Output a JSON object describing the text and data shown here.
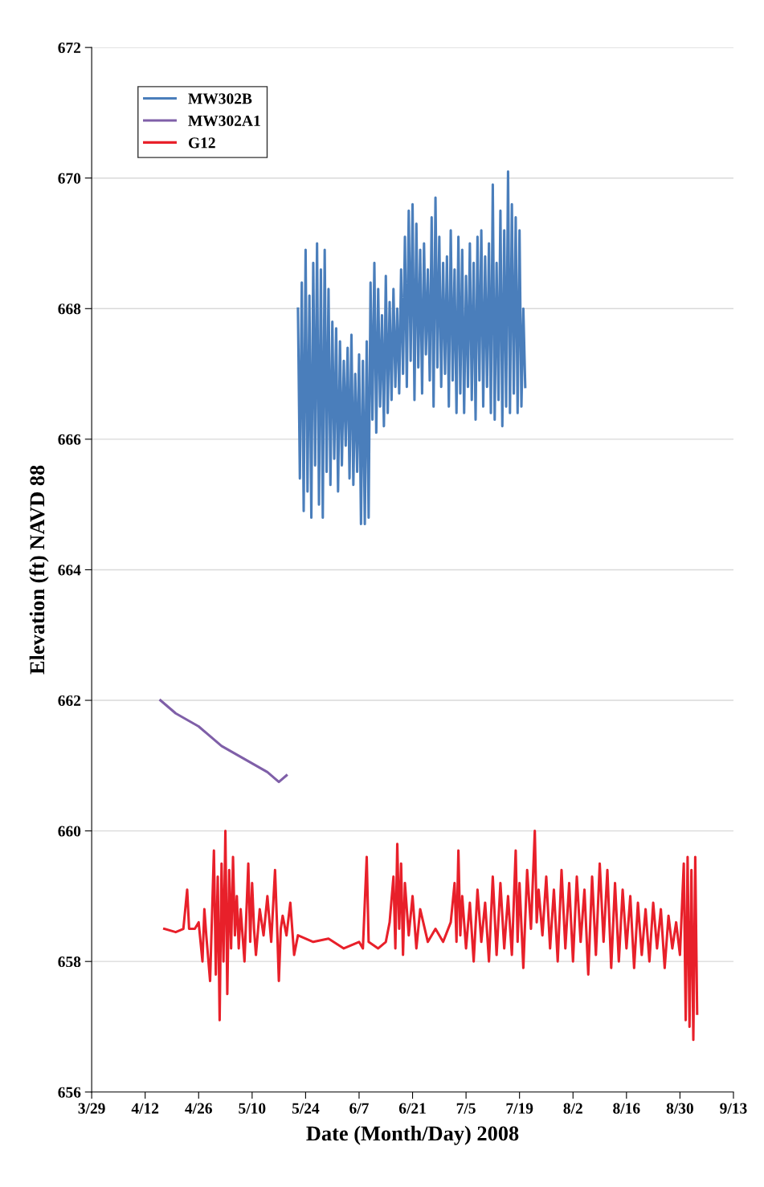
{
  "chart_data": {
    "type": "line",
    "xlabel": "Date (Month/Day) 2008",
    "ylabel": "Elevation (ft) NAVD 88",
    "xlim": [
      "2008-03-29",
      "2008-09-13"
    ],
    "xticks": [
      {
        "value": "2008-03-29",
        "label": "3/29"
      },
      {
        "value": "2008-04-12",
        "label": "4/12"
      },
      {
        "value": "2008-04-26",
        "label": "4/26"
      },
      {
        "value": "2008-05-10",
        "label": "5/10"
      },
      {
        "value": "2008-05-24",
        "label": "5/24"
      },
      {
        "value": "2008-06-07",
        "label": "6/7"
      },
      {
        "value": "2008-06-21",
        "label": "6/21"
      },
      {
        "value": "2008-07-05",
        "label": "7/5"
      },
      {
        "value": "2008-07-19",
        "label": "7/19"
      },
      {
        "value": "2008-08-02",
        "label": "8/2"
      },
      {
        "value": "2008-08-16",
        "label": "8/16"
      },
      {
        "value": "2008-08-30",
        "label": "8/30"
      },
      {
        "value": "2008-09-13",
        "label": "9/13"
      }
    ],
    "ylim": [
      656,
      672
    ],
    "yticks": [
      656,
      658,
      660,
      662,
      664,
      666,
      668,
      670,
      672
    ],
    "grid": "y",
    "legend": "top left",
    "marker": "none",
    "line_style": "solid",
    "series": [
      {
        "name": "MW302B",
        "color": "#4a7ebb",
        "x": [
          "2008-05-22T00:00",
          "2008-05-22T12:00",
          "2008-05-23T00:00",
          "2008-05-23T12:00",
          "2008-05-24T00:00",
          "2008-05-24T12:00",
          "2008-05-25T00:00",
          "2008-05-25T12:00",
          "2008-05-26T00:00",
          "2008-05-26T12:00",
          "2008-05-27T00:00",
          "2008-05-27T12:00",
          "2008-05-28T00:00",
          "2008-05-28T12:00",
          "2008-05-29T00:00",
          "2008-05-29T12:00",
          "2008-05-30T00:00",
          "2008-05-30T12:00",
          "2008-05-31T00:00",
          "2008-05-31T12:00",
          "2008-06-01T00:00",
          "2008-06-01T12:00",
          "2008-06-02T00:00",
          "2008-06-02T12:00",
          "2008-06-03T00:00",
          "2008-06-03T12:00",
          "2008-06-04T00:00",
          "2008-06-04T12:00",
          "2008-06-05T00:00",
          "2008-06-05T12:00",
          "2008-06-06T00:00",
          "2008-06-06T12:00",
          "2008-06-07T00:00",
          "2008-06-07T12:00",
          "2008-06-08T00:00",
          "2008-06-08T12:00",
          "2008-06-09T00:00",
          "2008-06-09T12:00",
          "2008-06-10T00:00",
          "2008-06-10T12:00",
          "2008-06-11T00:00",
          "2008-06-11T12:00",
          "2008-06-12T00:00",
          "2008-06-12T12:00",
          "2008-06-13T00:00",
          "2008-06-13T12:00",
          "2008-06-14T00:00",
          "2008-06-14T12:00",
          "2008-06-15T00:00",
          "2008-06-15T12:00",
          "2008-06-16T00:00",
          "2008-06-16T12:00",
          "2008-06-17T00:00",
          "2008-06-17T12:00",
          "2008-06-18T00:00",
          "2008-06-18T12:00",
          "2008-06-19T00:00",
          "2008-06-19T12:00",
          "2008-06-20T00:00",
          "2008-06-20T12:00",
          "2008-06-21T00:00",
          "2008-06-21T12:00",
          "2008-06-22T00:00",
          "2008-06-22T12:00",
          "2008-06-23T00:00",
          "2008-06-23T12:00",
          "2008-06-24T00:00",
          "2008-06-24T12:00",
          "2008-06-25T00:00",
          "2008-06-25T12:00",
          "2008-06-26T00:00",
          "2008-06-26T12:00",
          "2008-06-27T00:00",
          "2008-06-27T12:00",
          "2008-06-28T00:00",
          "2008-06-28T12:00",
          "2008-06-29T00:00",
          "2008-06-29T12:00",
          "2008-06-30T00:00",
          "2008-06-30T12:00",
          "2008-07-01T00:00",
          "2008-07-01T12:00",
          "2008-07-02T00:00",
          "2008-07-02T12:00",
          "2008-07-03T00:00",
          "2008-07-03T12:00",
          "2008-07-04T00:00",
          "2008-07-04T12:00",
          "2008-07-05T00:00",
          "2008-07-05T12:00",
          "2008-07-06T00:00",
          "2008-07-06T12:00",
          "2008-07-07T00:00",
          "2008-07-07T12:00",
          "2008-07-08T00:00",
          "2008-07-08T12:00",
          "2008-07-09T00:00",
          "2008-07-09T12:00",
          "2008-07-10T00:00",
          "2008-07-10T12:00",
          "2008-07-11T00:00",
          "2008-07-11T12:00",
          "2008-07-12T00:00",
          "2008-07-12T12:00",
          "2008-07-13T00:00",
          "2008-07-13T12:00",
          "2008-07-14T00:00",
          "2008-07-14T12:00",
          "2008-07-15T00:00",
          "2008-07-15T12:00",
          "2008-07-16T00:00",
          "2008-07-16T12:00",
          "2008-07-17T00:00",
          "2008-07-17T12:00",
          "2008-07-18T00:00",
          "2008-07-18T12:00",
          "2008-07-19T00:00",
          "2008-07-19T12:00",
          "2008-07-20T00:00",
          "2008-07-20T12:00"
        ],
        "values": [
          668.0,
          665.4,
          668.4,
          664.9,
          668.9,
          665.2,
          668.2,
          664.8,
          668.7,
          665.6,
          669.0,
          665.0,
          668.6,
          664.8,
          668.9,
          665.5,
          668.3,
          665.3,
          667.8,
          665.7,
          667.7,
          665.2,
          667.5,
          665.6,
          667.2,
          665.9,
          667.4,
          665.4,
          667.6,
          665.3,
          667.0,
          665.5,
          667.3,
          664.7,
          667.2,
          664.7,
          667.5,
          664.8,
          668.4,
          666.3,
          668.7,
          666.1,
          668.3,
          666.5,
          667.9,
          666.2,
          668.5,
          666.4,
          668.1,
          666.6,
          668.3,
          666.8,
          668.0,
          666.7,
          668.6,
          667.0,
          669.1,
          666.8,
          669.5,
          667.2,
          669.6,
          666.6,
          669.3,
          667.1,
          668.9,
          666.7,
          669.0,
          667.3,
          668.6,
          666.9,
          669.4,
          666.5,
          669.7,
          667.1,
          669.1,
          666.8,
          668.7,
          667.0,
          668.8,
          666.5,
          669.2,
          666.9,
          668.6,
          666.4,
          669.1,
          666.7,
          668.9,
          666.4,
          668.5,
          666.8,
          669.0,
          666.6,
          668.7,
          666.3,
          669.1,
          666.9,
          669.2,
          666.5,
          668.8,
          666.8,
          669.0,
          666.4,
          669.9,
          666.3,
          668.7,
          666.6,
          669.5,
          666.2,
          669.2,
          666.5,
          670.1,
          666.4,
          669.6,
          666.7,
          669.4,
          666.4,
          669.2,
          666.5,
          668.0,
          666.8
        ]
      },
      {
        "name": "MW302A1",
        "color": "#7f5fa8",
        "x": [
          "2008-04-16",
          "2008-04-20",
          "2008-04-26",
          "2008-05-02",
          "2008-05-08",
          "2008-05-14",
          "2008-05-17",
          "2008-05-19"
        ],
        "values": [
          662.0,
          661.8,
          661.6,
          661.3,
          661.1,
          660.9,
          660.75,
          660.85
        ]
      },
      {
        "name": "G12",
        "color": "#e8202a",
        "x": [
          "2008-04-17",
          "2008-04-20",
          "2008-04-22",
          "2008-04-23",
          "2008-04-23T12:00",
          "2008-04-25",
          "2008-04-26",
          "2008-04-27",
          "2008-04-27T12:00",
          "2008-04-28",
          "2008-04-29",
          "2008-04-30",
          "2008-04-30T12:00",
          "2008-05-01",
          "2008-05-01T12:00",
          "2008-05-02",
          "2008-05-02T12:00",
          "2008-05-03",
          "2008-05-03T12:00",
          "2008-05-04",
          "2008-05-04T12:00",
          "2008-05-05",
          "2008-05-05T12:00",
          "2008-05-06",
          "2008-05-06T12:00",
          "2008-05-07",
          "2008-05-08",
          "2008-05-09",
          "2008-05-09T12:00",
          "2008-05-10",
          "2008-05-10T12:00",
          "2008-05-11",
          "2008-05-12",
          "2008-05-13",
          "2008-05-14",
          "2008-05-15",
          "2008-05-16",
          "2008-05-16T12:00",
          "2008-05-17",
          "2008-05-17T12:00",
          "2008-05-18",
          "2008-05-19",
          "2008-05-20",
          "2008-05-21",
          "2008-05-22",
          "2008-05-26",
          "2008-05-30",
          "2008-06-03",
          "2008-06-07",
          "2008-06-08",
          "2008-06-09",
          "2008-06-09T12:00",
          "2008-06-12",
          "2008-06-14",
          "2008-06-15",
          "2008-06-16",
          "2008-06-16T12:00",
          "2008-06-17",
          "2008-06-17T12:00",
          "2008-06-18",
          "2008-06-18T12:00",
          "2008-06-19",
          "2008-06-20",
          "2008-06-21",
          "2008-06-22",
          "2008-06-23",
          "2008-06-25",
          "2008-06-27",
          "2008-06-29",
          "2008-07-01",
          "2008-07-02",
          "2008-07-02T12:00",
          "2008-07-03",
          "2008-07-03T12:00",
          "2008-07-04",
          "2008-07-05",
          "2008-07-06",
          "2008-07-07",
          "2008-07-08",
          "2008-07-09",
          "2008-07-10",
          "2008-07-11",
          "2008-07-12",
          "2008-07-13",
          "2008-07-14",
          "2008-07-15",
          "2008-07-16",
          "2008-07-17",
          "2008-07-18",
          "2008-07-18T12:00",
          "2008-07-19",
          "2008-07-20",
          "2008-07-21",
          "2008-07-22",
          "2008-07-23",
          "2008-07-23T12:00",
          "2008-07-24",
          "2008-07-25",
          "2008-07-26",
          "2008-07-27",
          "2008-07-28",
          "2008-07-29",
          "2008-07-30",
          "2008-07-31",
          "2008-08-01",
          "2008-08-02",
          "2008-08-03",
          "2008-08-04",
          "2008-08-05",
          "2008-08-06",
          "2008-08-07",
          "2008-08-08",
          "2008-08-09",
          "2008-08-10",
          "2008-08-11",
          "2008-08-12",
          "2008-08-13",
          "2008-08-14",
          "2008-08-15",
          "2008-08-16",
          "2008-08-17",
          "2008-08-18",
          "2008-08-19",
          "2008-08-20",
          "2008-08-21",
          "2008-08-22",
          "2008-08-23",
          "2008-08-24",
          "2008-08-25",
          "2008-08-26",
          "2008-08-27",
          "2008-08-28",
          "2008-08-29",
          "2008-08-30",
          "2008-08-31",
          "2008-08-31T12:00",
          "2008-09-01",
          "2008-09-01T12:00",
          "2008-09-02",
          "2008-09-02T12:00",
          "2008-09-03",
          "2008-09-03T12:00"
        ],
        "values": [
          658.5,
          658.45,
          658.5,
          659.1,
          658.5,
          658.5,
          658.6,
          658.0,
          658.8,
          658.4,
          657.7,
          659.7,
          657.8,
          659.3,
          657.1,
          659.5,
          658.0,
          660.0,
          657.5,
          659.4,
          658.2,
          659.6,
          658.4,
          659.0,
          658.2,
          658.8,
          658.0,
          659.5,
          658.3,
          659.2,
          658.5,
          658.1,
          658.8,
          658.4,
          659.0,
          658.3,
          659.4,
          658.6,
          657.7,
          658.5,
          658.7,
          658.4,
          658.9,
          658.1,
          658.4,
          658.3,
          658.35,
          658.2,
          658.3,
          658.2,
          659.6,
          658.3,
          658.2,
          658.3,
          658.6,
          659.3,
          658.2,
          659.8,
          658.5,
          659.5,
          658.1,
          659.2,
          658.4,
          659.0,
          658.2,
          658.8,
          658.3,
          658.5,
          658.3,
          658.6,
          659.2,
          658.3,
          659.7,
          658.4,
          659.0,
          658.2,
          658.9,
          658.0,
          659.1,
          658.3,
          658.9,
          658.0,
          659.3,
          658.1,
          659.2,
          658.2,
          659.0,
          658.1,
          659.7,
          658.3,
          659.2,
          657.9,
          659.4,
          658.5,
          660.0,
          658.6,
          659.1,
          658.4,
          659.3,
          658.2,
          659.1,
          658.0,
          659.4,
          658.2,
          659.2,
          658.0,
          659.3,
          658.3,
          659.1,
          657.8,
          659.3,
          658.1,
          659.5,
          658.3,
          659.4,
          657.9,
          659.2,
          658.0,
          659.1,
          658.2,
          659.0,
          657.9,
          658.9,
          658.1,
          658.8,
          658.0,
          658.9,
          658.2,
          658.8,
          657.9,
          658.7,
          658.2,
          658.6,
          658.1,
          659.5,
          657.1,
          659.6,
          657.0,
          659.4,
          656.8,
          659.6,
          657.2
        ]
      }
    ]
  }
}
